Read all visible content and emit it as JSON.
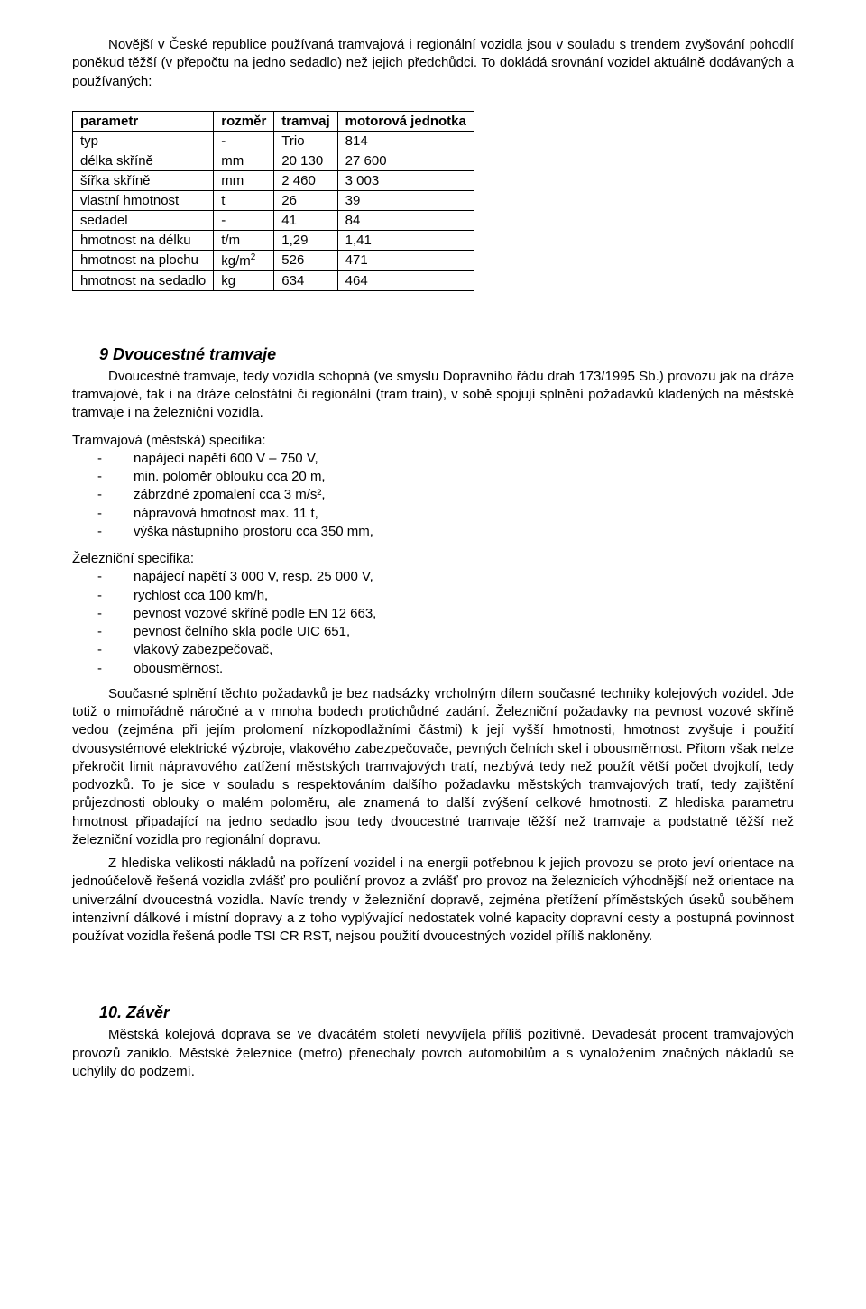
{
  "intro": {
    "p1": "Novější v České republice používaná tramvajová i regionální vozidla jsou v souladu s trendem zvyšování pohodlí poněkud těžší (v přepočtu na jedno sedadlo) než jejich předchůdci. To dokládá srovnání vozidel aktuálně dodávaných a používaných:"
  },
  "table": {
    "headers": [
      "parametr",
      "rozměr",
      "tramvaj",
      "motorová jednotka"
    ],
    "rows": [
      {
        "param": "typ",
        "unit": "-",
        "tram": "Trio",
        "mu": "814"
      },
      {
        "param": "délka skříně",
        "unit": "mm",
        "tram": "20 130",
        "mu": "27 600"
      },
      {
        "param": "šířka skříně",
        "unit": "mm",
        "tram": "2 460",
        "mu": "3 003"
      },
      {
        "param": "vlastní hmotnost",
        "unit": "t",
        "tram": "26",
        "mu": "39"
      },
      {
        "param": "sedadel",
        "unit": "-",
        "tram": "41",
        "mu": "84"
      },
      {
        "param": "hmotnost na délku",
        "unit": "t/m",
        "tram": "1,29",
        "mu": "1,41"
      },
      {
        "param": "hmotnost na plochu",
        "unit": "kg/m²",
        "tram": "526",
        "mu": "471"
      },
      {
        "param": "hmotnost na sedadlo",
        "unit": "kg",
        "tram": "634",
        "mu": "464"
      }
    ]
  },
  "sec9": {
    "title": "9 Dvoucestné tramvaje",
    "p1": "Dvoucestné tramvaje, tedy vozidla schopná (ve smyslu Dopravního řádu drah 173/1995 Sb.) provozu jak na dráze tramvajové, tak i na dráze celostátní či regionální (tram train), v sobě spojují splnění požadavků kladených na městské tramvaje i na železniční vozidla.",
    "tram_hdr": "Tramvajová (městská) specifika:",
    "tram_items": [
      "napájecí napětí 600 V – 750 V,",
      "min. poloměr oblouku cca 20 m,",
      "zábrzdné zpomalení cca 3 m/s²,",
      "nápravová hmotnost max. 11 t,",
      "výška nástupního prostoru cca 350 mm,"
    ],
    "rail_hdr": "Železniční specifika:",
    "rail_items": [
      "napájecí napětí 3 000 V, resp. 25 000 V,",
      "rychlost cca 100 km/h,",
      "pevnost vozové skříně podle EN 12 663,",
      "pevnost čelního skla podle UIC 651,",
      "vlakový zabezpečovač,",
      "obousměrnost."
    ],
    "p2": "Současné splnění těchto požadavků je bez nadsázky vrcholným dílem současné techniky kolejových vozidel. Jde totiž o mimořádně náročné a v mnoha bodech protichůdné zadání. Železniční požadavky na pevnost vozové skříně vedou (zejména při jejím prolomení nízkopodlažními částmi) k její vyšší hmotnosti, hmotnost zvyšuje i použití dvousystémové elektrické výzbroje, vlakového zabezpečovače, pevných čelních skel i obousměrnost. Přitom však nelze překročit limit nápravového zatížení městských tramvajových tratí, nezbývá tedy než použít větší počet dvojkolí, tedy podvozků. To je sice v souladu s respektováním dalšího požadavku městských tramvajových tratí, tedy zajištění průjezdnosti oblouky o malém poloměru, ale znamená to další zvýšení celkové hmotnosti. Z hlediska parametru hmotnost připadající na jedno sedadlo jsou tedy dvoucestné tramvaje těžší než tramvaje a podstatně těžší než železniční vozidla pro regionální dopravu.",
    "p3": "Z hlediska velikosti nákladů na pořízení vozidel i na energii potřebnou k jejich provozu se proto jeví orientace na jednoúčelově řešená vozidla zvlášť pro pouliční provoz a zvlášť pro provoz na železnicích výhodnější než orientace na univerzální dvoucestná vozidla. Navíc trendy v železniční dopravě, zejména přetížení příměstských úseků souběhem intenzivní dálkové i místní dopravy a z toho vyplývající nedostatek volné kapacity dopravní cesty a postupná povinnost používat vozidla řešená podle TSI CR RST, nejsou použití dvoucestných vozidel příliš nakloněny."
  },
  "sec10": {
    "title": "10. Závěr",
    "p1": "Městská kolejová doprava se ve dvacátém století nevyvíjela příliš pozitivně. Devadesát procent tramvajových provozů zaniklo. Městské železnice (metro) přenechaly povrch automobilům a s vynaložením značných nákladů se uchýlily do podzemí."
  }
}
